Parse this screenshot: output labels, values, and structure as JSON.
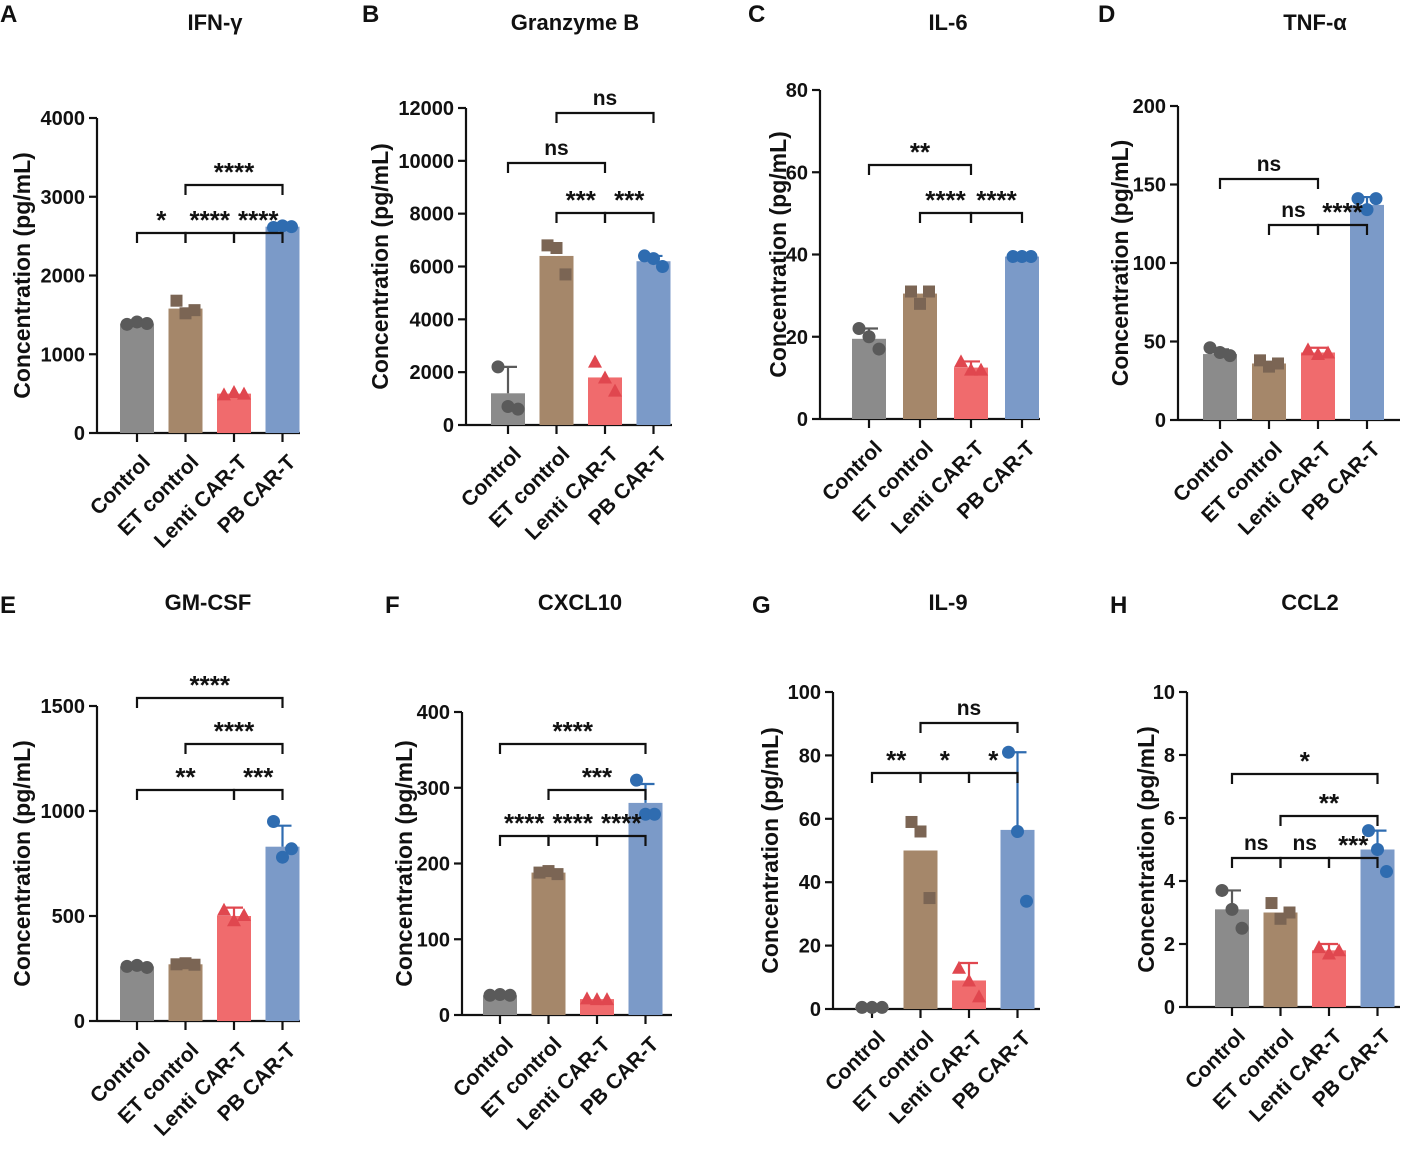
{
  "colors": {
    "Control": {
      "bar": "#8b8b8b",
      "point": "#5a5a5a"
    },
    "ET control": {
      "bar": "#a5876a",
      "point": "#7b6554"
    },
    "Lenti CAR-T": {
      "bar": "#f06b6d",
      "point": "#e0474f"
    },
    "PB CAR-T": {
      "bar": "#7b9ac8",
      "point": "#2f6cb0"
    }
  },
  "chart_data": [
    {
      "panel": "A",
      "type": "bar",
      "title": "IFN-γ",
      "ylabel": "Concentration (pg/mL)",
      "ylim": [
        0,
        4000
      ],
      "yticks": [
        0,
        1000,
        2000,
        3000,
        4000
      ],
      "categories": [
        "Control",
        "ET control",
        "Lenti CAR-T",
        "PB CAR-T"
      ],
      "values": [
        1390,
        1580,
        500,
        2620
      ],
      "errors": [
        0,
        120,
        0,
        0
      ],
      "points": [
        [
          1380,
          1410,
          1390
        ],
        [
          1680,
          1520,
          1560
        ],
        [
          490,
          520,
          500
        ],
        [
          2610,
          2630,
          2620
        ]
      ],
      "markers": [
        "circle",
        "square",
        "triangle",
        "circle"
      ],
      "comparisons": [
        {
          "i": 0,
          "j": 1,
          "label": "*"
        },
        {
          "i": 1,
          "j": 2,
          "label": "****"
        },
        {
          "i": 2,
          "j": 3,
          "label": "****"
        },
        {
          "i": 1,
          "j": 3,
          "label": "****"
        }
      ]
    },
    {
      "panel": "B",
      "type": "bar",
      "title": "Granzyme B",
      "ylabel": "Concentration (pg/mL)",
      "ylim": [
        0,
        12000
      ],
      "yticks": [
        0,
        2000,
        4000,
        6000,
        8000,
        10000,
        12000
      ],
      "categories": [
        "Control",
        "ET control",
        "Lenti CAR-T",
        "PB CAR-T"
      ],
      "values": [
        1200,
        6400,
        1800,
        6200
      ],
      "errors": [
        1000,
        500,
        0,
        200
      ],
      "points": [
        [
          2200,
          700,
          600
        ],
        [
          6800,
          6700,
          5700
        ],
        [
          2400,
          1800,
          1300
        ],
        [
          6400,
          6300,
          6000
        ]
      ],
      "markers": [
        "circle",
        "square",
        "triangle",
        "circle"
      ],
      "comparisons": [
        {
          "i": 1,
          "j": 2,
          "label": "***"
        },
        {
          "i": 0,
          "j": 2,
          "label": "ns"
        },
        {
          "i": 2,
          "j": 3,
          "label": "***"
        },
        {
          "i": 1,
          "j": 3,
          "label": "ns"
        }
      ]
    },
    {
      "panel": "C",
      "type": "bar",
      "title": "IL-6",
      "ylabel": "Concentration (pg/mL)",
      "ylim": [
        0,
        80
      ],
      "yticks": [
        0,
        20,
        40,
        60,
        80
      ],
      "categories": [
        "Control",
        "ET control",
        "Lenti CAR-T",
        "PB CAR-T"
      ],
      "values": [
        19.5,
        30.5,
        12.5,
        39.5
      ],
      "errors": [
        2.5,
        1.5,
        1.5,
        0
      ],
      "points": [
        [
          22,
          20,
          17
        ],
        [
          31,
          28,
          31
        ],
        [
          14,
          12,
          12
        ],
        [
          39.5,
          39.5,
          39.5
        ]
      ],
      "markers": [
        "circle",
        "square",
        "triangle",
        "circle"
      ],
      "comparisons": [
        {
          "i": 1,
          "j": 2,
          "label": "****"
        },
        {
          "i": 0,
          "j": 2,
          "label": "**"
        },
        {
          "i": 2,
          "j": 3,
          "label": "****"
        }
      ]
    },
    {
      "panel": "D",
      "type": "bar",
      "title": "TNF-α",
      "ylabel": "Concentration (pg/mL)",
      "ylim": [
        0,
        200
      ],
      "yticks": [
        0,
        50,
        100,
        150,
        200
      ],
      "categories": [
        "Control",
        "ET control",
        "Lenti CAR-T",
        "PB CAR-T"
      ],
      "values": [
        42,
        36,
        43,
        137
      ],
      "errors": [
        3,
        3,
        3,
        5
      ],
      "points": [
        [
          46,
          43,
          41
        ],
        [
          38,
          34,
          36
        ],
        [
          45,
          42,
          43
        ],
        [
          141,
          134,
          141
        ]
      ],
      "markers": [
        "circle",
        "square",
        "triangle",
        "circle"
      ],
      "comparisons": [
        {
          "i": 1,
          "j": 2,
          "label": "ns"
        },
        {
          "i": 0,
          "j": 2,
          "label": "ns"
        },
        {
          "i": 2,
          "j": 3,
          "label": "****"
        }
      ]
    },
    {
      "panel": "E",
      "type": "bar",
      "title": "GM-CSF",
      "ylabel": "Concentration (pg/mL)",
      "ylim": [
        0,
        1500
      ],
      "yticks": [
        0,
        500,
        1000,
        1500
      ],
      "categories": [
        "Control",
        "ET control",
        "Lenti CAR-T",
        "PB CAR-T"
      ],
      "values": [
        260,
        270,
        500,
        830
      ],
      "errors": [
        0,
        0,
        40,
        100
      ],
      "points": [
        [
          260,
          265,
          255
        ],
        [
          270,
          275,
          268
        ],
        [
          530,
          480,
          505
        ],
        [
          950,
          780,
          820
        ]
      ],
      "markers": [
        "circle",
        "square",
        "triangle",
        "circle"
      ],
      "comparisons": [
        {
          "i": 0,
          "j": 2,
          "label": "**"
        },
        {
          "i": 2,
          "j": 3,
          "label": "***"
        },
        {
          "i": 1,
          "j": 3,
          "label": "****"
        },
        {
          "i": 0,
          "j": 3,
          "label": "****"
        }
      ]
    },
    {
      "panel": "F",
      "type": "bar",
      "title": "CXCL10",
      "ylabel": "Concentration (pg/mL)",
      "ylim": [
        0,
        400
      ],
      "yticks": [
        0,
        100,
        200,
        300,
        400
      ],
      "categories": [
        "Control",
        "ET control",
        "Lenti CAR-T",
        "PB CAR-T"
      ],
      "values": [
        26,
        188,
        21,
        280
      ],
      "errors": [
        0,
        10,
        0,
        25
      ],
      "points": [
        [
          26,
          27,
          26
        ],
        [
          188,
          190,
          186
        ],
        [
          22,
          21,
          21
        ],
        [
          310,
          265,
          265
        ]
      ],
      "markers": [
        "circle",
        "square",
        "triangle",
        "circle"
      ],
      "comparisons": [
        {
          "i": 1,
          "j": 2,
          "label": "****"
        },
        {
          "i": 0,
          "j": 1,
          "label": "****"
        },
        {
          "i": 2,
          "j": 3,
          "label": "****"
        },
        {
          "i": 1,
          "j": 3,
          "label": "***"
        },
        {
          "i": 0,
          "j": 3,
          "label": "****"
        }
      ]
    },
    {
      "panel": "G",
      "type": "bar",
      "title": "IL-9",
      "ylabel": "Concentration (pg/mL)",
      "ylim": [
        0,
        100
      ],
      "yticks": [
        0,
        20,
        40,
        60,
        80,
        100
      ],
      "categories": [
        "Control",
        "ET control",
        "Lenti CAR-T",
        "PB CAR-T"
      ],
      "values": [
        0.5,
        50,
        9,
        56.5
      ],
      "errors": [
        0,
        13,
        5.5,
        24.5
      ],
      "points": [
        [
          0.5,
          0.5,
          0.5
        ],
        [
          59,
          56,
          35
        ],
        [
          13,
          9,
          4
        ],
        [
          81,
          56,
          34
        ]
      ],
      "markers": [
        "circle",
        "square",
        "triangle",
        "circle"
      ],
      "comparisons": [
        {
          "i": 0,
          "j": 1,
          "label": "**"
        },
        {
          "i": 1,
          "j": 2,
          "label": "*"
        },
        {
          "i": 1,
          "j": 3,
          "label": "ns"
        },
        {
          "i": 2,
          "j": 3,
          "label": "*"
        }
      ]
    },
    {
      "panel": "H",
      "type": "bar",
      "title": "CCL2",
      "ylabel": "Concentration (pg/mL)",
      "ylim": [
        0,
        10
      ],
      "yticks": [
        0,
        2,
        4,
        6,
        8,
        10
      ],
      "categories": [
        "Control",
        "ET control",
        "Lenti CAR-T",
        "PB CAR-T"
      ],
      "values": [
        3.1,
        3.0,
        1.8,
        5.0
      ],
      "errors": [
        0.6,
        0.3,
        0.2,
        0.6
      ],
      "points": [
        [
          3.7,
          3.1,
          2.5
        ],
        [
          3.3,
          2.8,
          3.0
        ],
        [
          1.9,
          1.7,
          1.8
        ],
        [
          5.6,
          5.0,
          4.3
        ]
      ],
      "markers": [
        "circle",
        "square",
        "triangle",
        "circle"
      ],
      "comparisons": [
        {
          "i": 0,
          "j": 1,
          "label": "ns"
        },
        {
          "i": 1,
          "j": 2,
          "label": "ns"
        },
        {
          "i": 2,
          "j": 3,
          "label": "***"
        },
        {
          "i": 1,
          "j": 3,
          "label": "**"
        },
        {
          "i": 0,
          "j": 3,
          "label": "*"
        }
      ]
    }
  ]
}
